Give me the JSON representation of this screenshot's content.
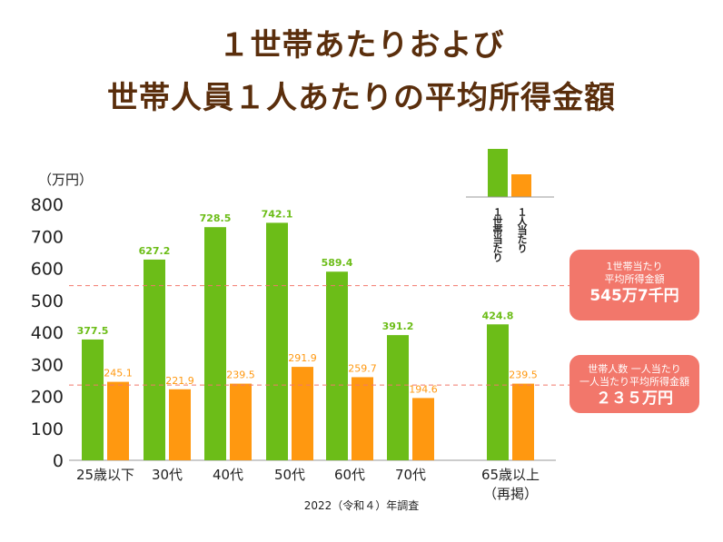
{
  "title_line1": "１世帯あたりおよび",
  "title_line2": "世帯人員１人あたりの平均所得金額",
  "colors": {
    "household": "#6cbd18",
    "person": "#ff9810",
    "title": "#5a2e0c",
    "callout": "#f2776b",
    "reference_line": "#f2776b"
  },
  "chart_data": {
    "type": "bar",
    "unit_label": "（万円）",
    "ylim": [
      0,
      800
    ],
    "yticks": [
      "0",
      "100",
      "200",
      "300",
      "400",
      "500",
      "600",
      "700",
      "800"
    ],
    "categories": [
      "25歳以下",
      "30代",
      "40代",
      "50代",
      "60代",
      "70代",
      "65歳以上"
    ],
    "category_sub": [
      "",
      "",
      "",
      "",
      "",
      "",
      "（再掲）"
    ],
    "series": [
      {
        "name": "１世帯当たり",
        "values": [
          377.5,
          627.2,
          728.5,
          742.1,
          589.4,
          391.2,
          424.8
        ],
        "labels": [
          "377.5",
          "627.2",
          "728.5",
          "742.1",
          "589.4",
          "391.2",
          "424.8"
        ]
      },
      {
        "name": "１人当たり",
        "values": [
          245.1,
          221.9,
          239.5,
          291.9,
          259.7,
          194.6,
          239.5
        ],
        "labels": [
          "245.1",
          "221.9",
          "239.5",
          "291.9",
          "259.7",
          "194.6",
          "239.5"
        ]
      }
    ],
    "reference_lines": [
      {
        "value": 545.7,
        "label_lines": [
          "1世帯当たり",
          "平均所得金額"
        ],
        "value_label": "545万7千円"
      },
      {
        "value": 235,
        "label_lines": [
          "世帯人数 一人当たり",
          "一人当たり平均所得金額"
        ],
        "value_label": "２３５万円"
      }
    ],
    "source": "2022（令和４）年調査",
    "grid": false
  }
}
